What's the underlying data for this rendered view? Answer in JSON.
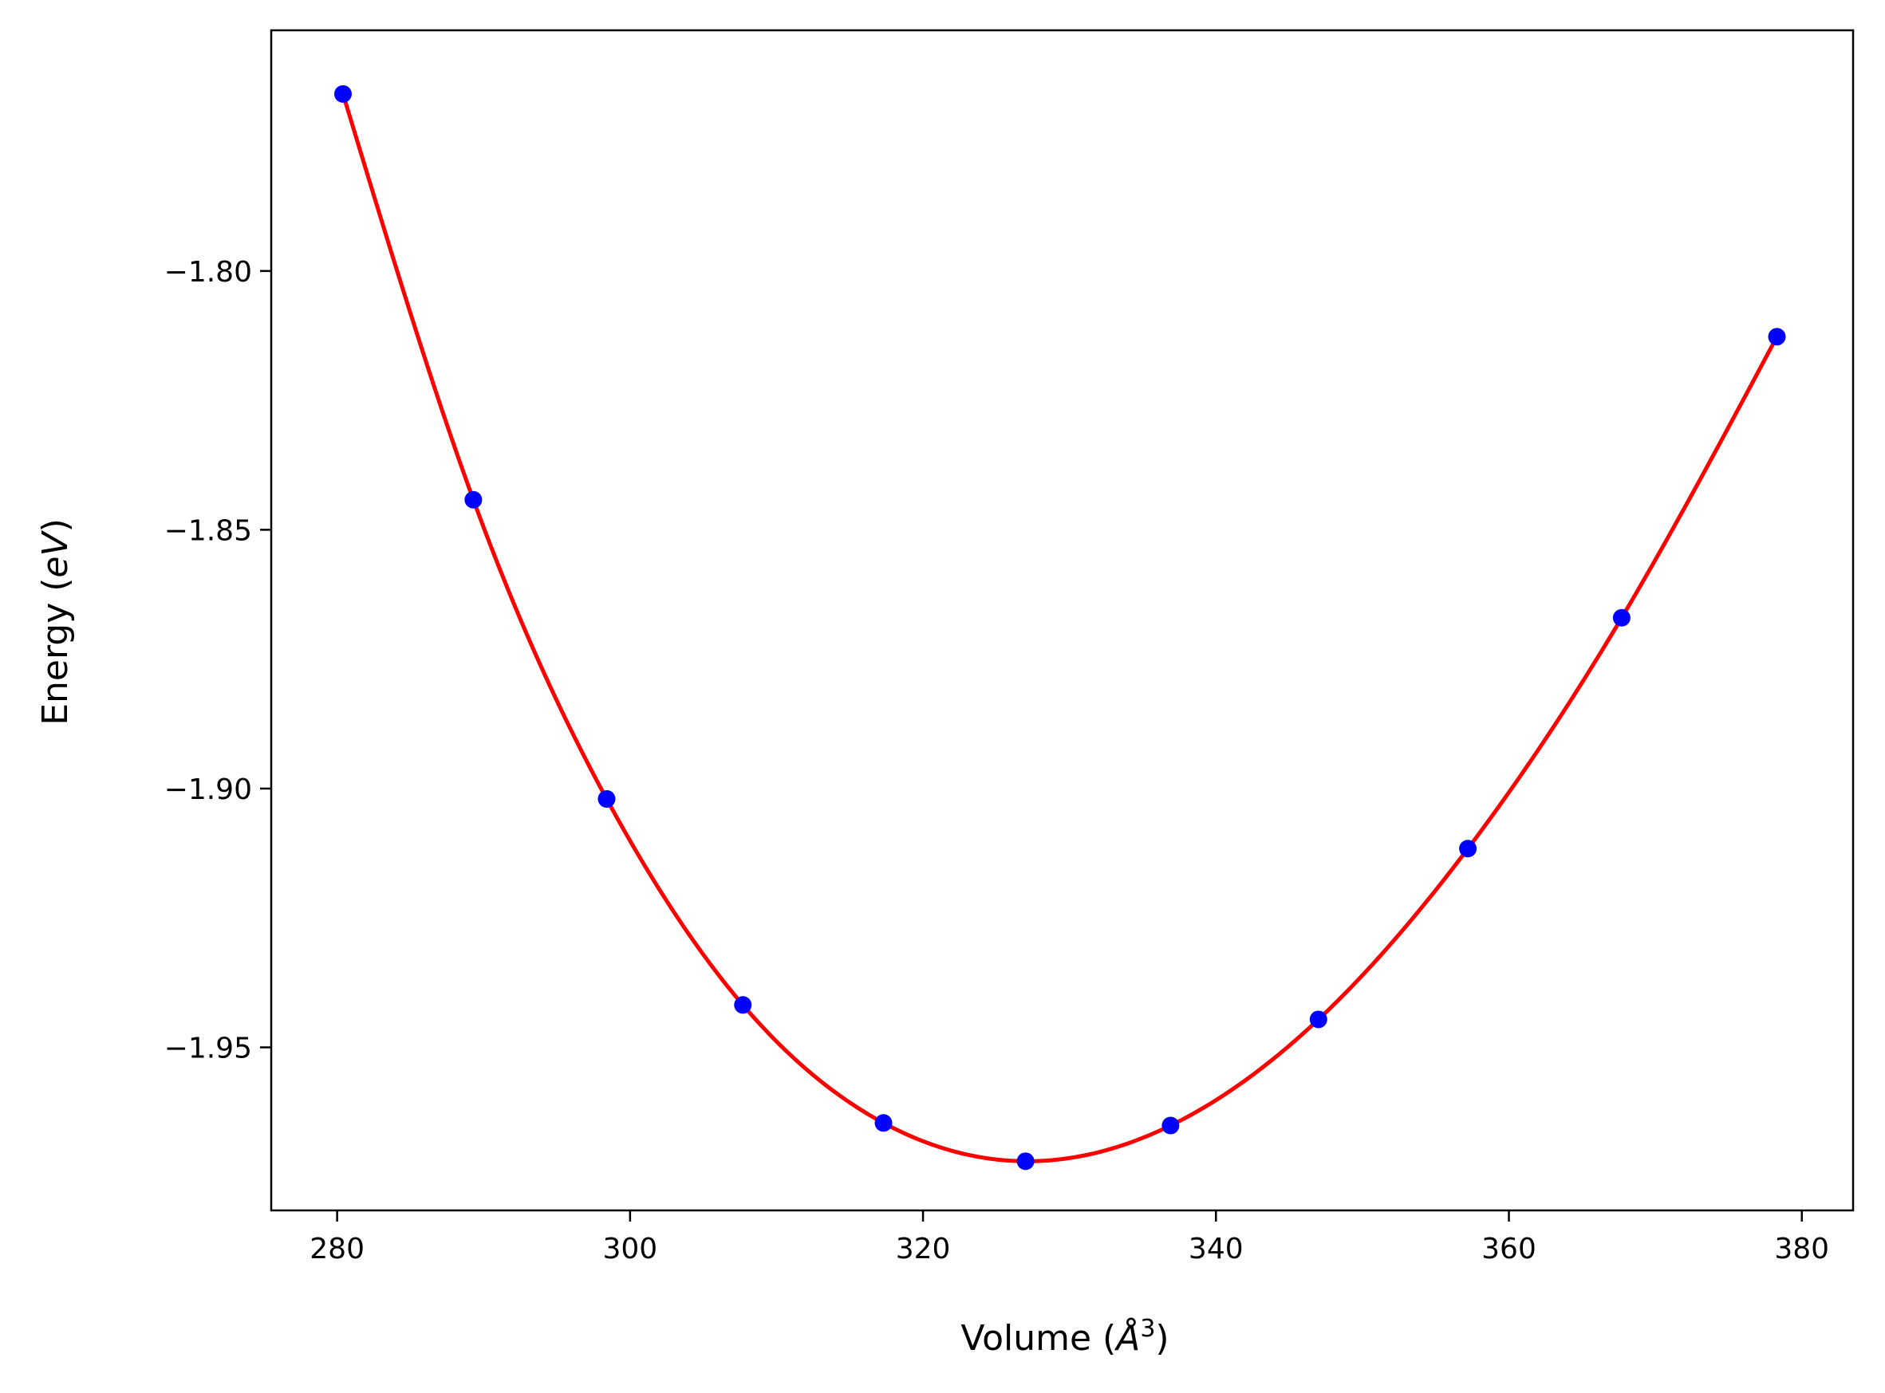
{
  "chart_data": {
    "type": "scatter",
    "title": "",
    "xlabel": {
      "prefix": "Volume (",
      "symbol": "Å",
      "superscript": "3",
      "suffix": ")"
    },
    "ylabel": {
      "prefix": "Energy (",
      "symbol": "eV",
      "suffix": ")"
    },
    "xlim": [
      275.5,
      383.5
    ],
    "ylim": [
      -1.9815,
      -1.7535
    ],
    "xticks": [
      280,
      300,
      320,
      340,
      360,
      380
    ],
    "xtick_labels": [
      "280",
      "300",
      "320",
      "340",
      "360",
      "380"
    ],
    "yticks": [
      -1.8,
      -1.85,
      -1.9,
      -1.95
    ],
    "ytick_labels": [
      "−1.80",
      "−1.85",
      "−1.90",
      "−1.95"
    ],
    "grid": false,
    "series": [
      {
        "kind": "points",
        "color": "#0000ff",
        "x": [
          280.4,
          289.3,
          298.4,
          307.7,
          317.3,
          327.0,
          336.9,
          347.0,
          357.2,
          367.7,
          378.3
        ],
        "y": [
          -1.7658,
          -1.8442,
          -1.902,
          -1.9418,
          -1.9646,
          -1.972,
          -1.9651,
          -1.9446,
          -1.9116,
          -1.867,
          -1.8127
        ]
      },
      {
        "kind": "fit-curve",
        "color": "#ff0000"
      }
    ]
  }
}
